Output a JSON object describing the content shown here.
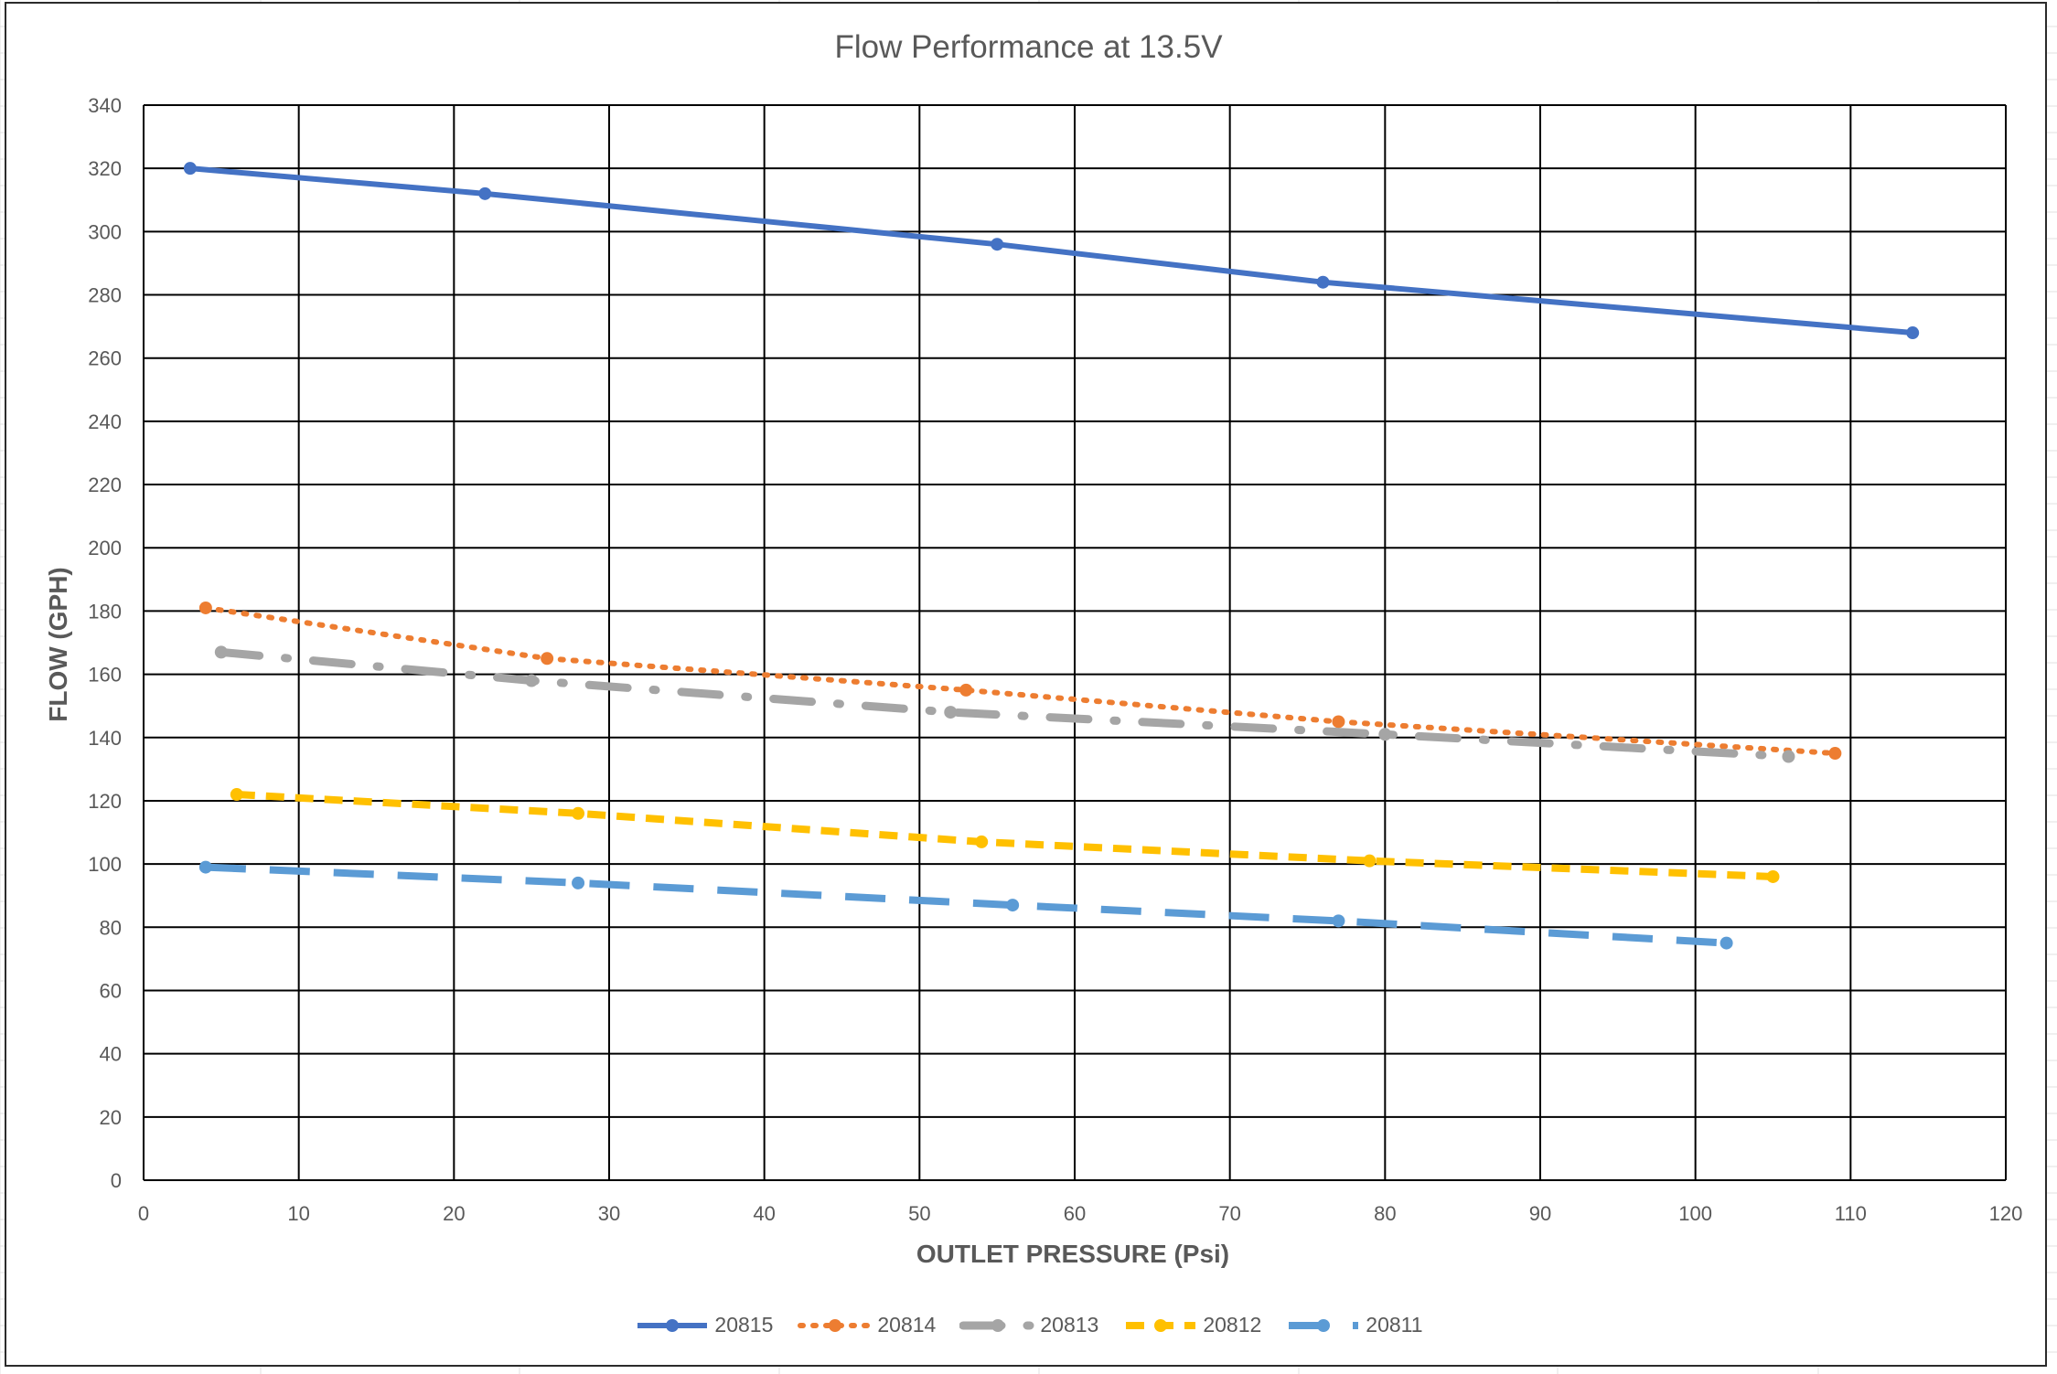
{
  "chart_data": {
    "type": "line",
    "title": "Flow Performance at 13.5V",
    "xlabel": "OUTLET PRESSURE (Psi)",
    "ylabel": "FLOW (GPH)",
    "xlim": [
      0,
      120
    ],
    "ylim": [
      0,
      340
    ],
    "xticks": [
      0,
      10,
      20,
      30,
      40,
      50,
      60,
      70,
      80,
      90,
      100,
      110,
      120
    ],
    "yticks": [
      0,
      20,
      40,
      60,
      80,
      100,
      120,
      140,
      160,
      180,
      200,
      220,
      240,
      260,
      280,
      300,
      320,
      340
    ],
    "grid": true,
    "legend_position": "bottom",
    "series": [
      {
        "name": "20815",
        "color": "#4472C4",
        "style": "solid",
        "x": [
          3,
          22,
          55,
          76,
          114
        ],
        "y": [
          320,
          312,
          296,
          284,
          268
        ]
      },
      {
        "name": "20814",
        "color": "#ED7D31",
        "style": "dotted",
        "x": [
          4,
          26,
          53,
          77,
          109
        ],
        "y": [
          181,
          165,
          155,
          145,
          135
        ]
      },
      {
        "name": "20813",
        "color": "#A5A5A5",
        "style": "dash-dot",
        "x": [
          5,
          25,
          52,
          80,
          106
        ],
        "y": [
          167,
          158,
          148,
          141,
          134
        ]
      },
      {
        "name": "20812",
        "color": "#FFC000",
        "style": "dashed",
        "x": [
          6,
          28,
          54,
          79,
          105
        ],
        "y": [
          122,
          116,
          107,
          101,
          96
        ]
      },
      {
        "name": "20811",
        "color": "#5B9BD5",
        "style": "long-dash",
        "x": [
          4,
          28,
          56,
          77,
          102
        ],
        "y": [
          99,
          94,
          87,
          82,
          75
        ]
      }
    ]
  }
}
